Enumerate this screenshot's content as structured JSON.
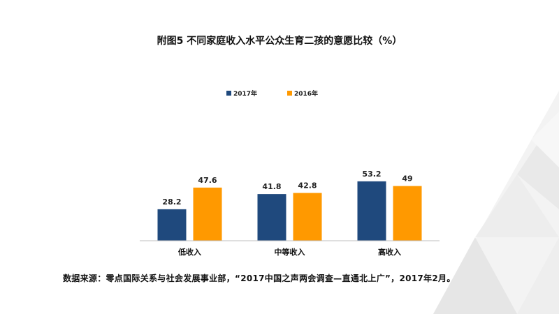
{
  "title": "附图5 不同家庭收入水平公众生育二孩的意愿比较（%）",
  "source": "数据来源：零点国际关系与社会发展事业部，“2017中国之声两会调查—直通北上广”，2017年2月。",
  "colors": {
    "series_2017": "#1F497D",
    "series_2016": "#FF9900"
  },
  "chart_data": {
    "type": "bar",
    "title": "附图5 不同家庭收入水平公众生育二孩的意愿比较（%）",
    "categories": [
      "低收入",
      "中等收入",
      "高收入"
    ],
    "series": [
      {
        "name": "2017年",
        "values": [
          28.2,
          41.8,
          53.2
        ]
      },
      {
        "name": "2016年",
        "values": [
          47.6,
          42.8,
          49
        ]
      }
    ],
    "value_labels": [
      [
        "28.2",
        "41.8",
        "53.2"
      ],
      [
        "47.6",
        "42.8",
        "49"
      ]
    ],
    "xlabel": "",
    "ylabel": "",
    "ylim": [
      0,
      60
    ],
    "grid": false,
    "legend": "top-center"
  }
}
